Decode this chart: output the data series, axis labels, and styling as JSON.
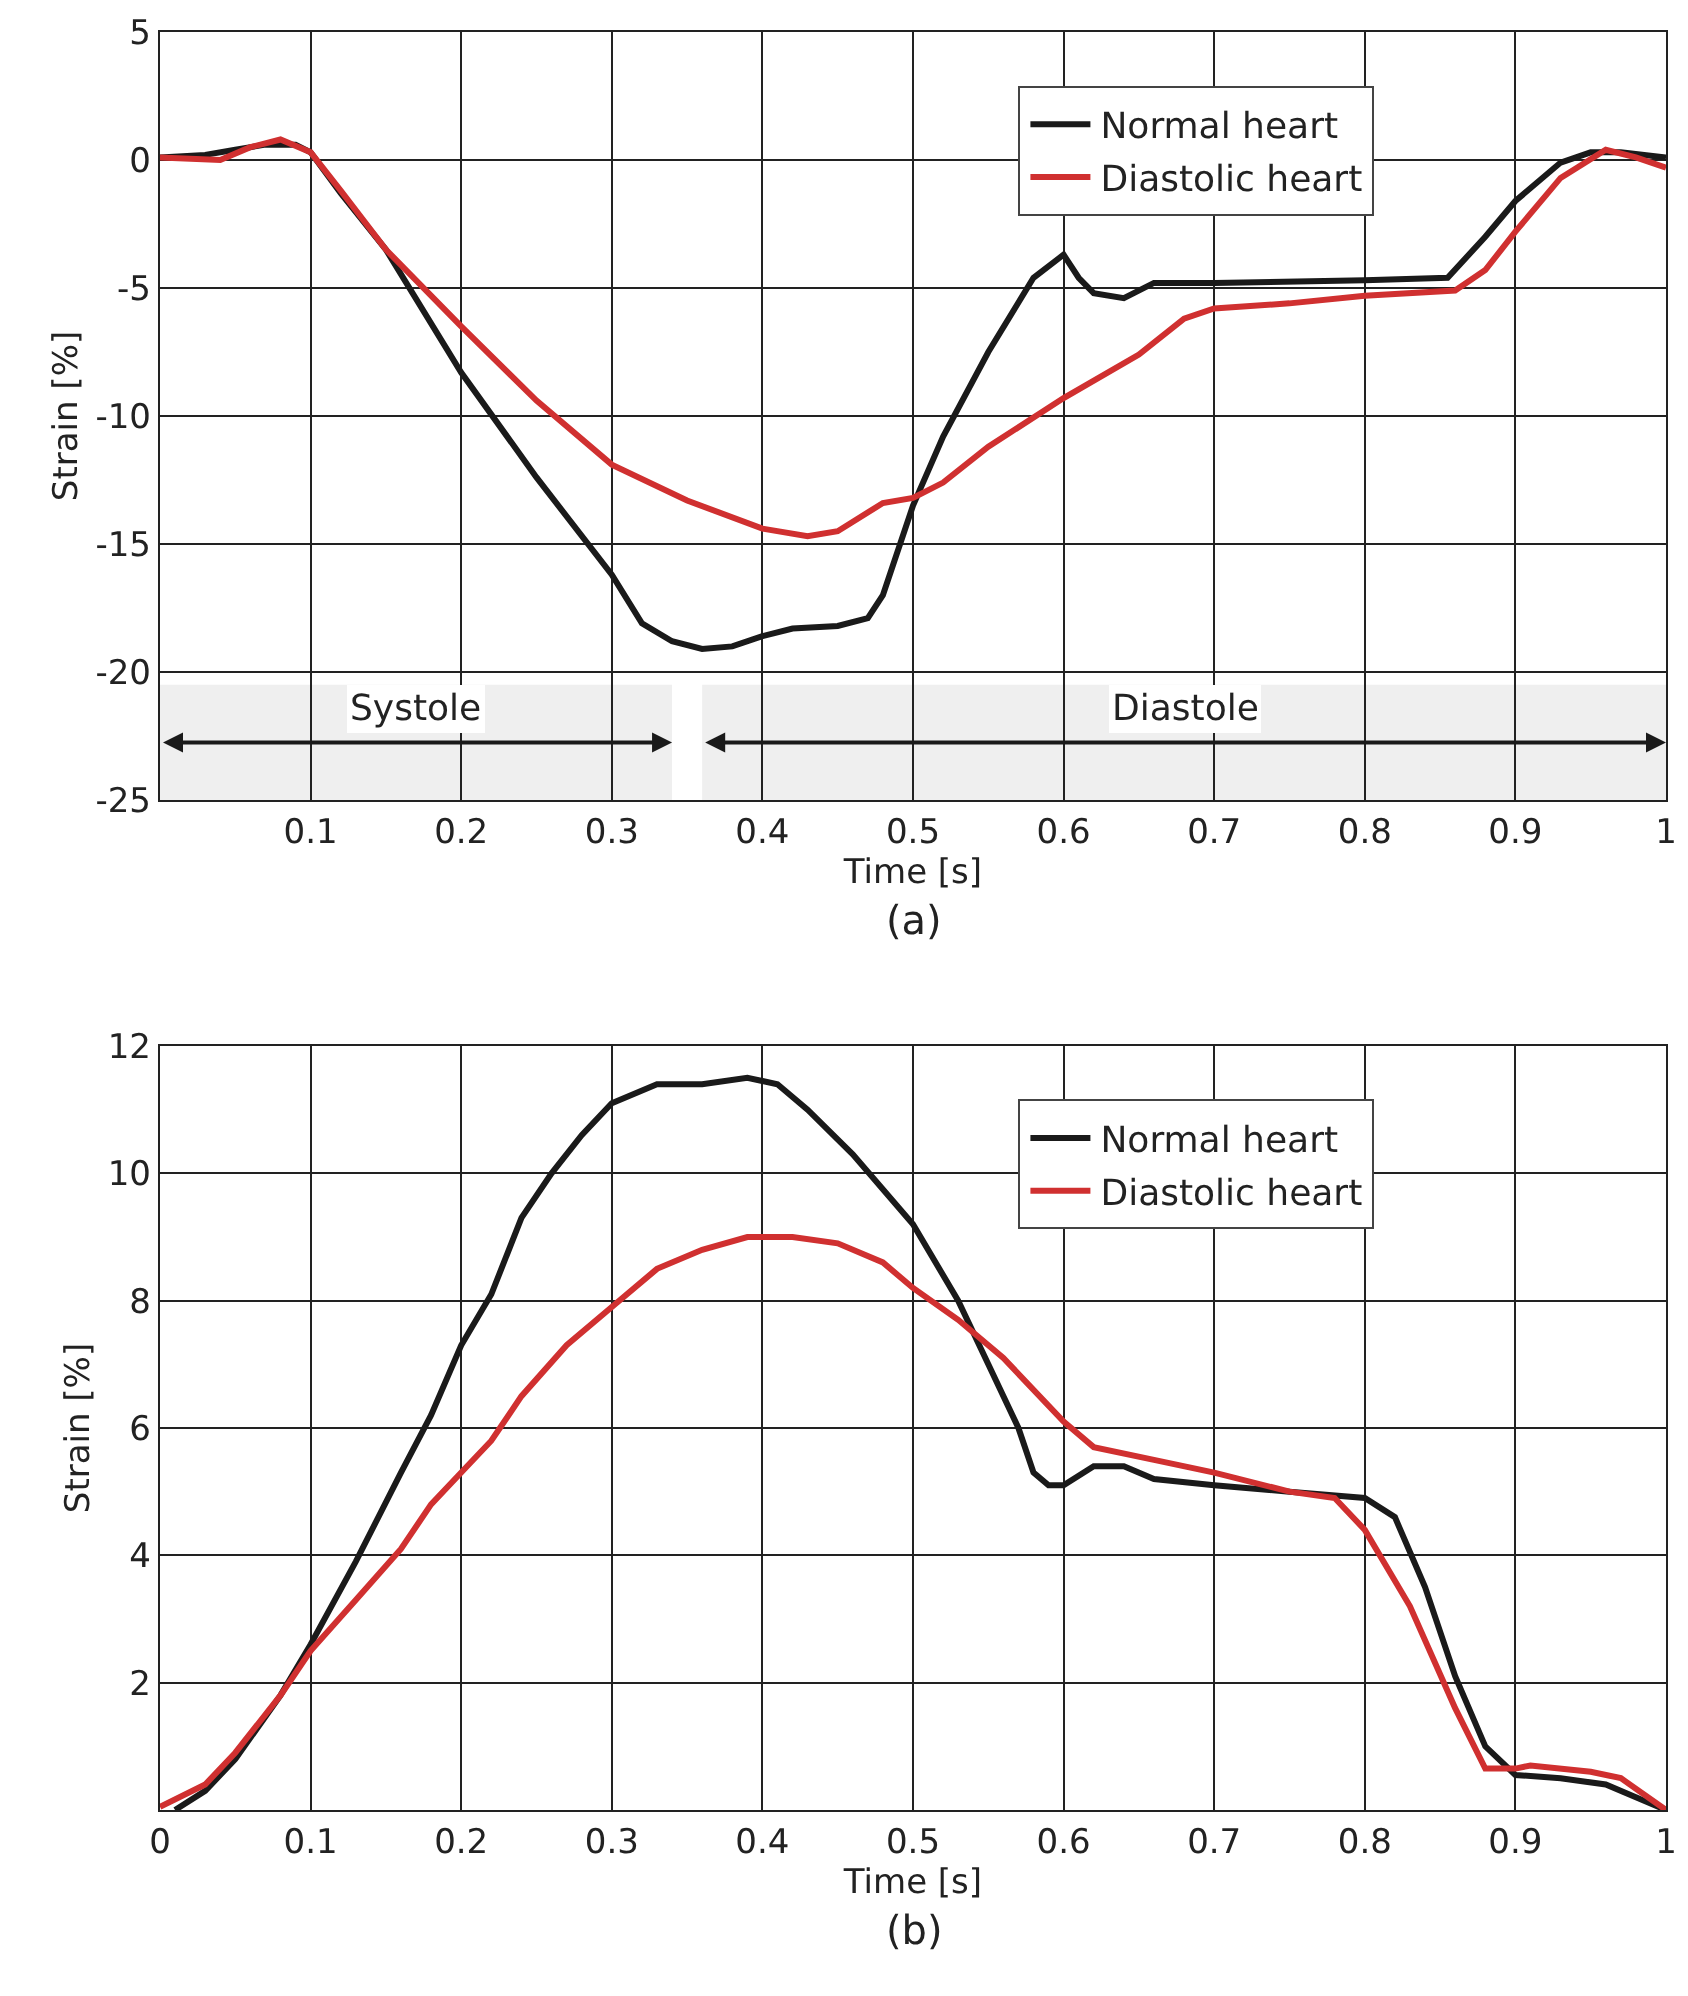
{
  "chart_data": [
    {
      "type": "line",
      "xlabel": "Time [s]",
      "ylabel": "Strain [%]",
      "annotations": [
        "(a)"
      ],
      "legend": "top right",
      "grid": true,
      "marker": "none",
      "line_style": "solid",
      "xlim": [
        0,
        1
      ],
      "ylim": [
        -25,
        5
      ],
      "xticks": [
        0.1,
        0.2,
        0.3,
        0.4,
        0.5,
        0.6,
        0.7,
        0.8,
        0.9,
        1
      ],
      "yticks": [
        -25,
        -20,
        -15,
        -10,
        -5,
        0,
        5
      ],
      "bands": [
        {
          "axis": "x",
          "from": 0,
          "to": 0.34,
          "label": "Systole",
          "color": "#1a1a1a"
        },
        {
          "axis": "x",
          "from": 0.36,
          "to": 1,
          "label": "Diastole",
          "color": "#1a1a1a"
        }
      ],
      "series": [
        {
          "name": "Normal heart",
          "color": "#1a1a1a",
          "x": [
            0,
            0.03,
            0.05,
            0.07,
            0.09,
            0.1,
            0.12,
            0.15,
            0.2,
            0.25,
            0.3,
            0.32,
            0.34,
            0.36,
            0.38,
            0.4,
            0.42,
            0.45,
            0.47,
            0.48,
            0.5,
            0.52,
            0.55,
            0.58,
            0.6,
            0.61,
            0.62,
            0.64,
            0.66,
            0.7,
            0.8,
            0.855,
            0.88,
            0.9,
            0.93,
            0.95,
            0.97,
            1
          ],
          "values": [
            0.1,
            0.2,
            0.4,
            0.6,
            0.6,
            0.3,
            -1.3,
            -3.5,
            -8.3,
            -12.4,
            -16.2,
            -18.1,
            -18.8,
            -19.1,
            -19.0,
            -18.6,
            -18.3,
            -18.2,
            -17.9,
            -17,
            -13.5,
            -10.8,
            -7.5,
            -4.6,
            -3.7,
            -4.6,
            -5.2,
            -5.4,
            -4.8,
            -4.8,
            -4.7,
            -4.6,
            -3,
            -1.6,
            -0.1,
            0.3,
            0.3,
            0.1
          ]
        },
        {
          "name": "Diastolic heart",
          "color": "#d03030",
          "x": [
            0,
            0.04,
            0.06,
            0.08,
            0.1,
            0.12,
            0.15,
            0.2,
            0.25,
            0.3,
            0.35,
            0.4,
            0.43,
            0.45,
            0.48,
            0.5,
            0.52,
            0.55,
            0.6,
            0.65,
            0.68,
            0.7,
            0.75,
            0.8,
            0.86,
            0.88,
            0.9,
            0.93,
            0.96,
            0.98,
            1
          ],
          "values": [
            0.1,
            0,
            0.5,
            0.8,
            0.3,
            -1.2,
            -3.5,
            -6.5,
            -9.4,
            -11.9,
            -13.3,
            -14.4,
            -14.7,
            -14.5,
            -13.4,
            -13.2,
            -12.6,
            -11.2,
            -9.3,
            -7.6,
            -6.2,
            -5.8,
            -5.6,
            -5.3,
            -5.1,
            -4.3,
            -2.8,
            -0.7,
            0.4,
            0.1,
            -0.3
          ]
        }
      ]
    },
    {
      "type": "line",
      "xlabel": "Time [s]",
      "ylabel": "Strain [%]",
      "annotations": [
        "(b)"
      ],
      "legend": "top right",
      "grid": true,
      "marker": "none",
      "line_style": "solid",
      "xlim": [
        0,
        1
      ],
      "ylim": [
        0,
        12
      ],
      "xticks": [
        0,
        0.1,
        0.2,
        0.3,
        0.4,
        0.5,
        0.6,
        0.7,
        0.8,
        0.9,
        1
      ],
      "yticks": [
        2,
        4,
        6,
        8,
        10,
        12
      ],
      "series": [
        {
          "name": "Normal heart",
          "color": "#1a1a1a",
          "x": [
            0.01,
            0.03,
            0.05,
            0.08,
            0.1,
            0.13,
            0.16,
            0.18,
            0.2,
            0.22,
            0.24,
            0.26,
            0.28,
            0.3,
            0.33,
            0.36,
            0.39,
            0.41,
            0.43,
            0.46,
            0.5,
            0.53,
            0.55,
            0.57,
            0.58,
            0.59,
            0.6,
            0.62,
            0.64,
            0.66,
            0.7,
            0.75,
            0.8,
            0.82,
            0.84,
            0.86,
            0.88,
            0.9,
            0.93,
            0.96,
            0.98,
            1
          ],
          "values": [
            0,
            0.3,
            0.8,
            1.8,
            2.6,
            3.9,
            5.3,
            6.2,
            7.3,
            8.1,
            9.3,
            10.0,
            10.6,
            11.1,
            11.4,
            11.4,
            11.5,
            11.4,
            11.0,
            10.3,
            9.2,
            8.0,
            7.0,
            6.0,
            5.3,
            5.1,
            5.1,
            5.4,
            5.4,
            5.2,
            5.1,
            5.0,
            4.9,
            4.6,
            3.5,
            2.1,
            1.0,
            0.55,
            0.5,
            0.4,
            0.2,
            0
          ]
        },
        {
          "name": "Diastolic heart",
          "color": "#d03030",
          "x": [
            0,
            0.03,
            0.05,
            0.08,
            0.1,
            0.13,
            0.16,
            0.18,
            0.2,
            0.22,
            0.24,
            0.27,
            0.3,
            0.33,
            0.36,
            0.39,
            0.42,
            0.45,
            0.48,
            0.5,
            0.53,
            0.56,
            0.6,
            0.62,
            0.66,
            0.7,
            0.75,
            0.78,
            0.8,
            0.83,
            0.86,
            0.88,
            0.9,
            0.91,
            0.95,
            0.97,
            1
          ],
          "values": [
            0.05,
            0.4,
            0.9,
            1.8,
            2.5,
            3.3,
            4.1,
            4.8,
            5.3,
            5.8,
            6.5,
            7.3,
            7.9,
            8.5,
            8.8,
            9.0,
            9.0,
            8.9,
            8.6,
            8.2,
            7.7,
            7.1,
            6.1,
            5.7,
            5.5,
            5.3,
            5.0,
            4.9,
            4.4,
            3.2,
            1.6,
            0.65,
            0.65,
            0.7,
            0.6,
            0.5,
            0
          ]
        }
      ]
    }
  ]
}
